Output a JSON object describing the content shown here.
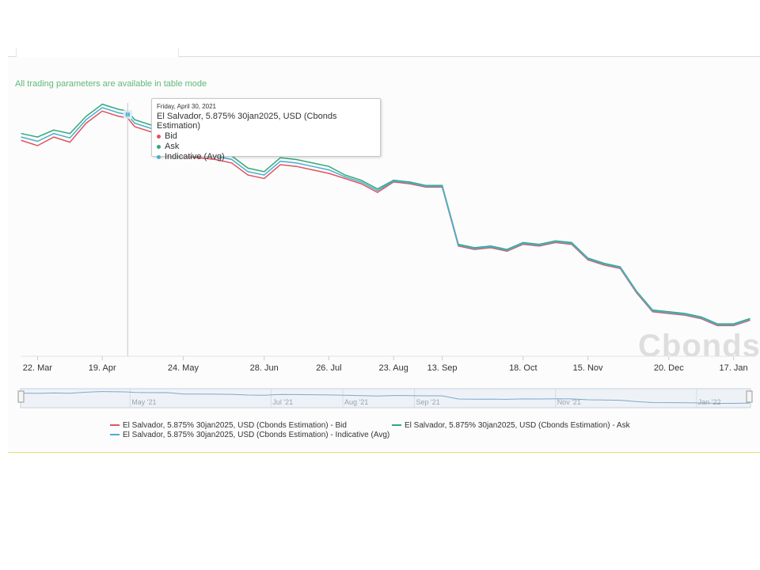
{
  "notice": "All trading parameters are available in table mode",
  "tooltip": {
    "date": "Friday, April 30, 2021",
    "title": "El Salvador, 5.875% 30jan2025, USD (Cbonds Estimation)",
    "rows": [
      {
        "label": "Bid",
        "color": "#e0545f"
      },
      {
        "label": "Ask",
        "color": "#34a87a"
      },
      {
        "label": "Indicative (Avg)",
        "color": "#4aaed0"
      }
    ]
  },
  "watermark": "Cbonds",
  "navigator": {
    "labels": [
      "May '21",
      "Jul '21",
      "Aug '21",
      "Sep '21",
      "Nov '21",
      "Jan '22"
    ]
  },
  "legend": [
    {
      "label": "El Salvador, 5.875% 30jan2025, USD (Cbonds Estimation) - Bid",
      "color": "#e0545f"
    },
    {
      "label": "El Salvador, 5.875% 30jan2025, USD (Cbonds Estimation) - Ask",
      "color": "#34a87a"
    },
    {
      "label": "El Salvador, 5.875% 30jan2025, USD (Cbonds Estimation) - Indicative (Avg)",
      "color": "#4aaed0"
    }
  ],
  "chart_data": {
    "type": "line",
    "title": "",
    "xlabel": "",
    "ylabel": "",
    "x_ticks": [
      "22. Mar",
      "19. Apr",
      "24. May",
      "28. Jun",
      "26. Jul",
      "23. Aug",
      "13. Sep",
      "18. Oct",
      "15. Nov",
      "20. Dec",
      "17. Jan"
    ],
    "grid": false,
    "legend_position": "bottom",
    "note": "Y axis not labeled; values are approximate relative price levels (higher = higher price).",
    "dates": [
      "2021-03-15",
      "2021-03-22",
      "2021-03-29",
      "2021-04-05",
      "2021-04-12",
      "2021-04-19",
      "2021-04-26",
      "2021-04-30",
      "2021-05-03",
      "2021-05-10",
      "2021-05-17",
      "2021-05-24",
      "2021-05-31",
      "2021-06-07",
      "2021-06-14",
      "2021-06-21",
      "2021-06-28",
      "2021-07-05",
      "2021-07-12",
      "2021-07-19",
      "2021-07-26",
      "2021-08-02",
      "2021-08-09",
      "2021-08-16",
      "2021-08-23",
      "2021-08-30",
      "2021-09-06",
      "2021-09-13",
      "2021-09-20",
      "2021-09-27",
      "2021-10-04",
      "2021-10-11",
      "2021-10-18",
      "2021-10-25",
      "2021-11-01",
      "2021-11-08",
      "2021-11-15",
      "2021-11-22",
      "2021-11-29",
      "2021-12-06",
      "2021-12-13",
      "2021-12-20",
      "2021-12-27",
      "2022-01-03",
      "2022-01-10",
      "2022-01-17",
      "2022-01-24"
    ],
    "series": [
      {
        "name": "Bid",
        "color": "#e0545f",
        "values": [
          94.6,
          94.3,
          94.8,
          94.5,
          95.6,
          96.3,
          96.0,
          95.9,
          95.4,
          95.1,
          95.2,
          93.7,
          93.6,
          93.5,
          93.3,
          92.6,
          92.4,
          93.2,
          93.1,
          92.9,
          92.7,
          92.4,
          92.1,
          91.6,
          92.2,
          92.1,
          91.9,
          91.9,
          88.5,
          88.3,
          88.4,
          88.2,
          88.6,
          88.5,
          88.7,
          88.6,
          87.7,
          87.4,
          87.2,
          85.8,
          84.7,
          84.6,
          84.5,
          84.3,
          83.9,
          83.9,
          84.2
        ]
      },
      {
        "name": "Ask",
        "color": "#34a87a",
        "values": [
          95.0,
          94.8,
          95.2,
          95.0,
          96.0,
          96.7,
          96.4,
          96.3,
          95.8,
          95.5,
          95.6,
          94.1,
          94.0,
          93.9,
          93.7,
          93.0,
          92.8,
          93.6,
          93.5,
          93.3,
          93.1,
          92.6,
          92.3,
          91.8,
          92.3,
          92.2,
          92.0,
          92.0,
          88.6,
          88.4,
          88.5,
          88.3,
          88.7,
          88.6,
          88.8,
          88.7,
          87.8,
          87.5,
          87.3,
          85.9,
          84.8,
          84.7,
          84.6,
          84.4,
          84.0,
          84.0,
          84.3
        ]
      },
      {
        "name": "Indicative (Avg)",
        "color": "#4aaed0",
        "values": [
          94.8,
          94.55,
          95.0,
          94.75,
          95.8,
          96.5,
          96.2,
          96.1,
          95.6,
          95.3,
          95.4,
          93.9,
          93.8,
          93.7,
          93.5,
          92.8,
          92.6,
          93.4,
          93.3,
          93.1,
          92.9,
          92.5,
          92.2,
          91.7,
          92.25,
          92.15,
          91.95,
          91.95,
          88.55,
          88.35,
          88.45,
          88.25,
          88.65,
          88.55,
          88.75,
          88.65,
          87.75,
          87.45,
          87.25,
          85.85,
          84.75,
          84.65,
          84.55,
          84.35,
          83.95,
          83.95,
          84.25
        ]
      }
    ],
    "ylim": [
      83.5,
      97.0
    ],
    "highlight": {
      "date": "2021-04-30"
    }
  }
}
